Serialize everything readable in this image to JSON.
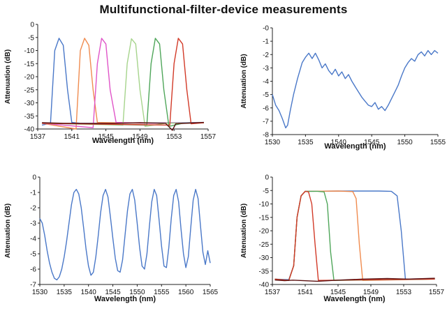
{
  "figure_title": "Multifunctional-filter-device measurements",
  "chart_data": [
    {
      "type": "line",
      "xlabel": "Wavelength (nm)",
      "ylabel": "Attenuation (dB)",
      "xlim": [
        1537,
        1557
      ],
      "ylim": [
        -40,
        0
      ],
      "x_ticks": [
        "1537",
        "1541",
        "1545",
        "1549",
        "1553",
        "1557"
      ],
      "y_ticks": [
        "0",
        "-5",
        "-10",
        "-15",
        "-20",
        "-25",
        "-30",
        "-35",
        "-40"
      ],
      "series": [
        {
          "color": "#4a78c8",
          "x": [
            1537.5,
            1538.5,
            1539.0,
            1539.5,
            1540.0,
            1540.5,
            1541.0,
            1542.0,
            1545.0,
            1556.5
          ],
          "y": [
            -38.5,
            -37.8,
            -10.0,
            -5.3,
            -8.0,
            -25.0,
            -37.5,
            -37.8,
            -37.8,
            -37.5
          ]
        },
        {
          "color": "#f08c50",
          "x": [
            1537.5,
            1541.5,
            1542.0,
            1542.5,
            1543.0,
            1543.5,
            1544.0,
            1549.0,
            1556.5
          ],
          "y": [
            -37.8,
            -40.0,
            -10.0,
            -5.3,
            -8.0,
            -25.0,
            -37.5,
            -37.8,
            -37.6
          ]
        },
        {
          "color": "#e055c8",
          "x": [
            1537.5,
            1543.5,
            1544.0,
            1544.5,
            1545.0,
            1545.5,
            1546.2,
            1550.0,
            1556.5
          ],
          "y": [
            -37.8,
            -39.5,
            -15.0,
            -5.3,
            -7.5,
            -25.0,
            -37.5,
            -37.8,
            -37.6
          ]
        },
        {
          "color": "#a6d48c",
          "x": [
            1537.5,
            1547.0,
            1547.5,
            1548.0,
            1548.5,
            1549.0,
            1549.6,
            1552.0,
            1556.5
          ],
          "y": [
            -37.8,
            -38.5,
            -15.0,
            -5.5,
            -7.5,
            -25.0,
            -39.0,
            -37.8,
            -37.6
          ]
        },
        {
          "color": "#4fa65a",
          "x": [
            1537.5,
            1549.8,
            1550.3,
            1550.8,
            1551.3,
            1551.8,
            1552.4,
            1554.0,
            1556.5
          ],
          "y": [
            -37.8,
            -38.5,
            -15.0,
            -5.3,
            -7.5,
            -25.0,
            -39.0,
            -37.8,
            -37.6
          ]
        },
        {
          "color": "#d23a28",
          "x": [
            1537.5,
            1552.5,
            1553.0,
            1553.5,
            1554.0,
            1554.5,
            1555.0,
            1556.5
          ],
          "y": [
            -37.8,
            -38.5,
            -15.0,
            -5.3,
            -7.5,
            -25.0,
            -38.0,
            -37.6
          ]
        },
        {
          "color": "#5a1010",
          "x": [
            1537.5,
            1540.0,
            1543.0,
            1546.0,
            1549.0,
            1552.0,
            1552.8,
            1553.2,
            1556.5
          ],
          "y": [
            -37.6,
            -37.8,
            -37.9,
            -37.8,
            -37.6,
            -37.8,
            -40.5,
            -38.0,
            -37.5
          ]
        }
      ]
    },
    {
      "type": "line",
      "xlabel": "Wavelength (nm)",
      "ylabel": "Attenuation (dB)",
      "xlim": [
        1530,
        1555
      ],
      "ylim": [
        -8,
        0
      ],
      "x_ticks": [
        "1530",
        "1535",
        "1540",
        "1545",
        "1550",
        "1555"
      ],
      "y_ticks": [
        "-0",
        "-1",
        "-2",
        "-3",
        "-4",
        "-5",
        "-6",
        "-7",
        "-8"
      ],
      "series": [
        {
          "color": "#4a78c8",
          "x": [
            1530.0,
            1530.5,
            1531.0,
            1531.5,
            1532.0,
            1532.3,
            1532.7,
            1533.2,
            1533.8,
            1534.5,
            1535.0,
            1535.5,
            1536.0,
            1536.5,
            1537.0,
            1537.5,
            1538.0,
            1538.5,
            1539.0,
            1539.5,
            1540.0,
            1540.5,
            1541.0,
            1541.5,
            1542.0,
            1542.5,
            1543.0,
            1543.5,
            1544.0,
            1544.5,
            1545.0,
            1545.5,
            1546.0,
            1546.5,
            1547.0,
            1547.5,
            1548.0,
            1548.5,
            1549.0,
            1549.5,
            1550.0,
            1550.5,
            1551.0,
            1551.5,
            1552.0,
            1552.5,
            1553.0,
            1553.5,
            1554.0,
            1554.5,
            1555.0
          ],
          "y": [
            -5.0,
            -5.8,
            -6.2,
            -6.8,
            -7.5,
            -7.3,
            -6.2,
            -5.0,
            -3.8,
            -2.6,
            -2.2,
            -1.9,
            -2.3,
            -1.9,
            -2.4,
            -3.0,
            -2.7,
            -3.2,
            -3.5,
            -3.1,
            -3.6,
            -3.3,
            -3.8,
            -3.5,
            -4.0,
            -4.4,
            -4.8,
            -5.2,
            -5.5,
            -5.8,
            -5.9,
            -5.6,
            -6.1,
            -5.9,
            -6.2,
            -5.8,
            -5.3,
            -4.8,
            -4.3,
            -3.6,
            -3.0,
            -2.6,
            -2.3,
            -2.5,
            -2.0,
            -1.8,
            -2.1,
            -1.7,
            -2.0,
            -1.7,
            -1.9
          ]
        }
      ]
    },
    {
      "type": "line",
      "xlabel": "Wavelength (nm)",
      "ylabel": "Attenuation (dB)",
      "xlim": [
        1530,
        1565
      ],
      "ylim": [
        -7,
        0
      ],
      "x_ticks": [
        "1530",
        "1535",
        "1540",
        "1545",
        "1550",
        "1555",
        "1560",
        "1565"
      ],
      "y_ticks": [
        "0",
        "-1",
        "-2",
        "-3",
        "-4",
        "-5",
        "-6",
        "-7"
      ],
      "series": [
        {
          "color": "#4a78c8",
          "x": [
            1530.0,
            1530.5,
            1531.0,
            1531.5,
            1532.0,
            1532.5,
            1533.0,
            1533.5,
            1534.0,
            1534.5,
            1535.0,
            1535.5,
            1536.0,
            1536.5,
            1537.0,
            1537.5,
            1538.0,
            1538.5,
            1539.0,
            1539.5,
            1540.0,
            1540.5,
            1541.0,
            1541.5,
            1542.0,
            1542.5,
            1543.0,
            1543.5,
            1544.0,
            1544.5,
            1545.0,
            1545.5,
            1546.0,
            1546.5,
            1547.0,
            1547.5,
            1548.0,
            1548.5,
            1549.0,
            1549.5,
            1550.0,
            1550.5,
            1551.0,
            1551.5,
            1552.0,
            1552.5,
            1553.0,
            1553.5,
            1554.0,
            1554.5,
            1555.0,
            1555.5,
            1556.0,
            1556.5,
            1557.0,
            1557.5,
            1558.0,
            1558.5,
            1559.0,
            1559.5,
            1560.0,
            1560.5,
            1561.0,
            1561.5,
            1562.0,
            1562.5,
            1563.0,
            1563.5,
            1564.0,
            1564.5,
            1565.0
          ],
          "y": [
            -2.7,
            -3.0,
            -3.8,
            -4.8,
            -5.6,
            -6.2,
            -6.6,
            -6.7,
            -6.5,
            -6.0,
            -5.2,
            -4.2,
            -3.0,
            -1.8,
            -1.0,
            -0.8,
            -1.1,
            -2.0,
            -3.3,
            -4.7,
            -5.8,
            -6.4,
            -6.2,
            -5.2,
            -3.8,
            -2.3,
            -1.2,
            -0.8,
            -1.3,
            -2.6,
            -4.0,
            -5.3,
            -6.1,
            -6.2,
            -5.4,
            -3.8,
            -2.2,
            -1.1,
            -0.8,
            -1.5,
            -3.0,
            -4.6,
            -5.8,
            -6.0,
            -5.0,
            -3.2,
            -1.6,
            -0.8,
            -1.2,
            -2.8,
            -4.5,
            -5.8,
            -5.9,
            -4.6,
            -2.7,
            -1.2,
            -0.8,
            -1.6,
            -3.4,
            -5.0,
            -5.9,
            -5.2,
            -3.3,
            -1.5,
            -0.8,
            -1.4,
            -3.2,
            -4.9,
            -5.7,
            -4.8,
            -5.6
          ]
        }
      ]
    },
    {
      "type": "line",
      "xlabel": "Wavelength (nm)",
      "ylabel": "Attenuation (dB)",
      "xlim": [
        1537,
        1557
      ],
      "ylim": [
        -40,
        0
      ],
      "x_ticks": [
        "1537",
        "1541",
        "1545",
        "1549",
        "1553",
        "1557"
      ],
      "y_ticks": [
        "0",
        "-5",
        "-10",
        "-15",
        "-20",
        "-25",
        "-30",
        "-35",
        "-40"
      ],
      "series": [
        {
          "color": "#4a78c8",
          "x": [
            1537.3,
            1539.0,
            1539.6,
            1540.0,
            1540.5,
            1541.0,
            1545.0,
            1550.0,
            1551.5,
            1552.2,
            1552.7,
            1553.2,
            1556.8
          ],
          "y": [
            -38.0,
            -38.2,
            -33.0,
            -15.0,
            -7.0,
            -5.3,
            -5.2,
            -5.2,
            -5.3,
            -7.0,
            -20.0,
            -38.0,
            -37.8
          ]
        },
        {
          "color": "#f08c50",
          "x": [
            1537.3,
            1539.0,
            1539.6,
            1540.0,
            1540.5,
            1541.0,
            1545.0,
            1546.8,
            1547.2,
            1547.6,
            1548.0,
            1556.8
          ],
          "y": [
            -38.0,
            -38.5,
            -33.0,
            -15.0,
            -7.0,
            -5.3,
            -5.2,
            -5.4,
            -8.0,
            -25.0,
            -38.5,
            -38.0
          ]
        },
        {
          "color": "#4fa65a",
          "x": [
            1537.3,
            1539.0,
            1539.6,
            1540.0,
            1540.5,
            1541.0,
            1542.5,
            1543.3,
            1543.7,
            1544.1,
            1544.5,
            1556.8
          ],
          "y": [
            -38.0,
            -38.5,
            -33.0,
            -15.0,
            -7.0,
            -5.3,
            -5.3,
            -5.5,
            -10.0,
            -28.0,
            -38.5,
            -38.0
          ]
        },
        {
          "color": "#d23a28",
          "x": [
            1537.3,
            1539.0,
            1539.6,
            1540.0,
            1540.5,
            1541.0,
            1541.4,
            1541.8,
            1542.2,
            1542.6,
            1556.8
          ],
          "y": [
            -38.0,
            -38.5,
            -33.0,
            -15.0,
            -7.0,
            -5.3,
            -5.5,
            -10.0,
            -25.0,
            -38.5,
            -38.0
          ]
        },
        {
          "color": "#5a1010",
          "x": [
            1537.3,
            1538.5,
            1539.5,
            1542.5,
            1545.0,
            1548.0,
            1551.0,
            1553.5,
            1556.8
          ],
          "y": [
            -38.3,
            -38.6,
            -38.4,
            -38.8,
            -38.4,
            -38.0,
            -37.8,
            -38.0,
            -37.7
          ]
        }
      ]
    }
  ]
}
